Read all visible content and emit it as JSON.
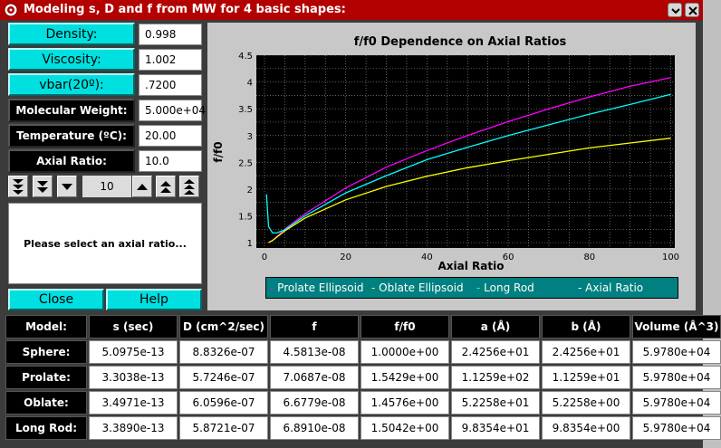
{
  "window": {
    "title": "Modeling s, D and f from MW for 4 basic shapes:"
  },
  "inputs": {
    "density": {
      "label": "Density:",
      "value": "0.998"
    },
    "viscosity": {
      "label": "Viscosity:",
      "value": "1.002"
    },
    "vbar": {
      "label": "vbar(20º):",
      "value": ".7200"
    },
    "molecular_weight": {
      "label": "Molecular Weight:",
      "value": "5.000e+04"
    },
    "temperature": {
      "label": "Temperature (ºC):",
      "value": "20.00"
    },
    "axial_ratio": {
      "label": "Axial Ratio:",
      "value": "10.0"
    }
  },
  "counter": {
    "value": "10"
  },
  "message": "Please select an axial ratio...",
  "buttons": {
    "close": "Close",
    "help": "Help"
  },
  "icons": {
    "window_menu": "window-menu-icon",
    "shade": "shade-icon",
    "minimize": "minimize-icon",
    "close": "close-icon",
    "dec_large": "triple-down-arrow-icon",
    "dec_medium": "double-down-arrow-icon",
    "dec_small": "down-arrow-icon",
    "inc_small": "up-arrow-icon",
    "inc_medium": "double-up-arrow-icon",
    "inc_large": "triple-up-arrow-icon"
  },
  "colors": {
    "title_bar": "#b30000",
    "button": "#00e0e0",
    "plot_background": "#000000",
    "legend_background": "#008080",
    "prolate": "#ff00ff",
    "oblate": "#ffff00",
    "long_rod": "#00ffff",
    "axial_ratio_marker": "#ffffff"
  },
  "chart_data": {
    "type": "line",
    "title": "f/f0 Dependence on Axial Ratios",
    "xlabel": "Axial Ratio",
    "ylabel": "f/f0",
    "xlim": [
      -2,
      101
    ],
    "ylim": [
      0.9,
      4.5
    ],
    "x_ticks": [
      "0",
      "20",
      "40",
      "60",
      "80",
      "100"
    ],
    "y_ticks": [
      "1",
      "1.5",
      "2",
      "2.5",
      "3",
      "3.5",
      "4",
      "4.5"
    ],
    "grid": true,
    "legend_position": "bottom",
    "series": [
      {
        "name": "Prolate Ellipsoid",
        "color": "#ff00ff",
        "x": [
          1,
          2,
          5,
          10,
          20,
          30,
          40,
          50,
          60,
          70,
          80,
          90,
          100
        ],
        "y": [
          1.0,
          1.04,
          1.25,
          1.54,
          2.02,
          2.41,
          2.72,
          3.0,
          3.26,
          3.5,
          3.72,
          3.92,
          4.08
        ]
      },
      {
        "name": "Oblate Ellipsoid",
        "color": "#ffff00",
        "x": [
          1,
          2,
          5,
          10,
          20,
          30,
          40,
          50,
          60,
          70,
          80,
          90,
          100
        ],
        "y": [
          1.0,
          1.04,
          1.22,
          1.46,
          1.8,
          2.05,
          2.24,
          2.4,
          2.53,
          2.65,
          2.77,
          2.86,
          2.95
        ]
      },
      {
        "name": "Long Rod",
        "color": "#00ffff",
        "x": [
          0.5,
          1,
          2,
          3,
          5,
          10,
          20,
          30,
          40,
          50,
          60,
          70,
          80,
          90,
          100
        ],
        "y": [
          1.9,
          1.3,
          1.18,
          1.18,
          1.24,
          1.5,
          1.93,
          2.25,
          2.55,
          2.78,
          3.0,
          3.2,
          3.4,
          3.58,
          3.77
        ]
      },
      {
        "name": "Axial Ratio",
        "color": "#ffffff",
        "x": [],
        "y": []
      }
    ]
  },
  "results": {
    "headers": [
      "Model:",
      "s (sec)",
      "D (cm^2/sec)",
      "f",
      "f/f0",
      "a (Å)",
      "b (Å)",
      "Volume (Å^3)"
    ],
    "rows": [
      {
        "model": "Sphere:",
        "values": [
          "5.0975e-13",
          "8.8326e-07",
          "4.5813e-08",
          "1.0000e+00",
          "2.4256e+01",
          "2.4256e+01",
          "5.9780e+04"
        ]
      },
      {
        "model": "Prolate:",
        "values": [
          "3.3038e-13",
          "5.7246e-07",
          "7.0687e-08",
          "1.5429e+00",
          "1.1259e+02",
          "1.1259e+01",
          "5.9780e+04"
        ]
      },
      {
        "model": "Oblate:",
        "values": [
          "3.4971e-13",
          "6.0596e-07",
          "6.6779e-08",
          "1.4576e+00",
          "5.2258e+01",
          "5.2258e+00",
          "5.9780e+04"
        ]
      },
      {
        "model": "Long Rod:",
        "values": [
          "3.3890e-13",
          "5.8721e-07",
          "6.8910e-08",
          "1.5042e+00",
          "9.8354e+01",
          "9.8354e+00",
          "5.9780e+04"
        ]
      }
    ]
  }
}
